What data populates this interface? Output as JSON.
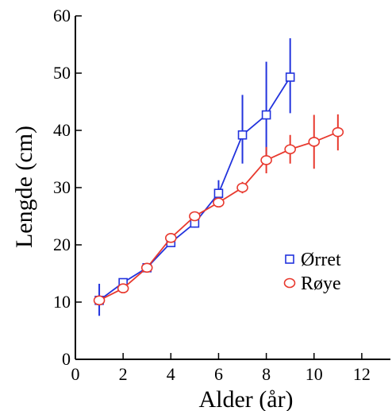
{
  "chart_data": {
    "type": "line",
    "xlabel": "Alder (år)",
    "ylabel": "Lengde (cm)",
    "xlim": [
      0,
      13.2
    ],
    "ylim": [
      0,
      60
    ],
    "xticks": [
      0,
      2,
      4,
      6,
      8,
      10,
      12
    ],
    "yticks": [
      0,
      10,
      20,
      30,
      40,
      50,
      60
    ],
    "grid": false,
    "legend_position": "lower-right",
    "series": [
      {
        "name": "Ørret",
        "color": "#2233dd",
        "marker": "square",
        "x": [
          1,
          2,
          3,
          4,
          5,
          6,
          7,
          8,
          9
        ],
        "y": [
          10.3,
          13.4,
          16.0,
          20.4,
          23.8,
          29.0,
          39.2,
          42.7,
          49.3
        ],
        "err_low": [
          7.6,
          13.0,
          15.5,
          19.8,
          23.0,
          27.5,
          34.2,
          35.0,
          43.0
        ],
        "err_high": [
          13.2,
          14.0,
          16.5,
          21.0,
          24.6,
          31.3,
          46.2,
          52.0,
          56.1
        ]
      },
      {
        "name": "Røye",
        "color": "#e8392e",
        "marker": "circle",
        "x": [
          1,
          2,
          3,
          4,
          5,
          6,
          7,
          8,
          9,
          10,
          11
        ],
        "y": [
          10.3,
          12.4,
          16.0,
          21.2,
          25.0,
          27.4,
          30.0,
          34.8,
          36.7,
          38.0,
          39.7
        ],
        "err_low": [
          10.0,
          12.0,
          15.7,
          20.8,
          24.5,
          26.7,
          29.0,
          32.5,
          34.2,
          33.3,
          36.5
        ],
        "err_high": [
          10.6,
          12.8,
          16.3,
          21.6,
          25.5,
          28.1,
          31.0,
          37.1,
          39.2,
          42.7,
          42.8
        ]
      }
    ]
  }
}
